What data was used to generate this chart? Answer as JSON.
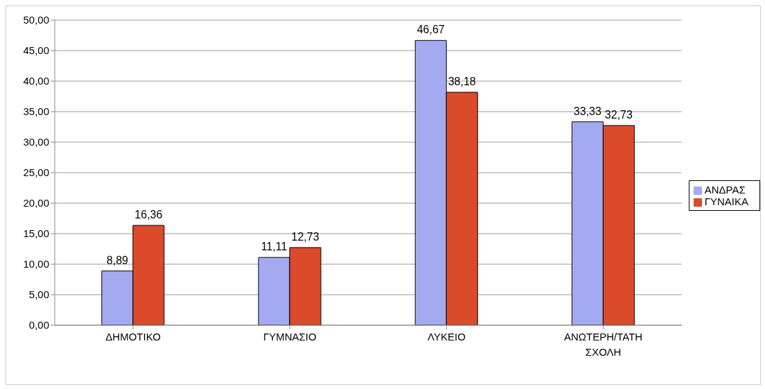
{
  "chart_data": {
    "type": "bar",
    "categories": [
      "ΔΗΜΟΤΙΚΟ",
      "ΓΥΜΝΑΣΙΟ",
      "ΛΥΚΕΙΟ",
      "ΑΝΩΤΕΡΗ/ΤΑΤΗ ΣΧΟΛΗ"
    ],
    "series": [
      {
        "name": "ΑΝΔΡΑΣ",
        "color": "#a3aaf0",
        "values": [
          8.89,
          11.11,
          46.67,
          33.33
        ],
        "value_labels": [
          "8,89",
          "11,11",
          "46,67",
          "33,33"
        ]
      },
      {
        "name": "ΓΥΝΑΙΚΑ",
        "color": "#dc4a2c",
        "values": [
          16.36,
          12.73,
          38.18,
          32.73
        ],
        "value_labels": [
          "16,36",
          "12,73",
          "38,18",
          "32,73"
        ]
      }
    ],
    "ylim": [
      0,
      50
    ],
    "yticks": [
      {
        "value": 0,
        "label": "0,00"
      },
      {
        "value": 5,
        "label": "5,00"
      },
      {
        "value": 10,
        "label": "10,00"
      },
      {
        "value": 15,
        "label": "15,00"
      },
      {
        "value": 20,
        "label": "20,00"
      },
      {
        "value": 25,
        "label": "25,00"
      },
      {
        "value": 30,
        "label": "30,00"
      },
      {
        "value": 35,
        "label": "35,00"
      },
      {
        "value": 40,
        "label": "40,00"
      },
      {
        "value": 45,
        "label": "45,00"
      },
      {
        "value": 50,
        "label": "50,00"
      }
    ],
    "grid": "y",
    "legend": "right"
  }
}
